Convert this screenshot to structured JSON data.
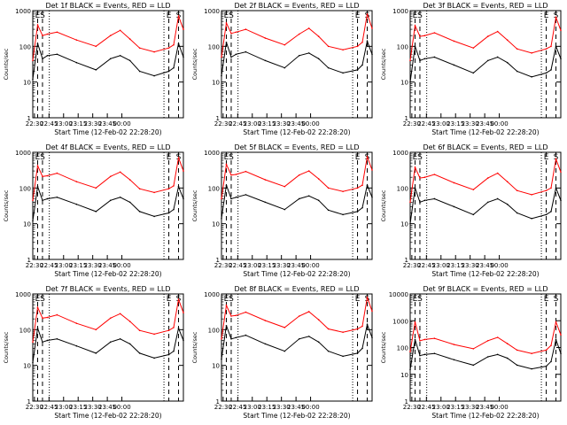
{
  "figure": {
    "xlabel": "Start Time (12-Feb-02 22:28:20)",
    "ylabel": "Counts/sec",
    "x_tick_labels": [
      "22:30",
      "22:45",
      "23:00",
      "23:15",
      "23:30",
      "23:45",
      "00:00"
    ],
    "colors": {
      "events": "#000000",
      "lld": "#ff0000",
      "background": "#ffffff"
    },
    "marker_labels": [
      "E",
      "S"
    ]
  },
  "chart_data": [
    {
      "type": "line",
      "title": "Det 1f BLACK = Events, RED = LLD",
      "ylim": [
        1,
        1000
      ],
      "yscale": "log",
      "y_tick_labels": [
        "1",
        "10",
        "100",
        "1000"
      ],
      "x_minutes": [
        0,
        5,
        10,
        15,
        25,
        45,
        65,
        80,
        90,
        100,
        110,
        125,
        140,
        145,
        150,
        155
      ],
      "series": [
        {
          "name": "BLACK = Events",
          "values": [
            12,
            120,
            45,
            55,
            60,
            35,
            22,
            45,
            55,
            40,
            20,
            15,
            20,
            25,
            120,
            50
          ]
        },
        {
          "name": "RED = LLD",
          "values": [
            40,
            400,
            200,
            220,
            250,
            150,
            100,
            200,
            280,
            160,
            90,
            70,
            90,
            110,
            700,
            300
          ]
        }
      ]
    },
    {
      "type": "line",
      "title": "Det 2f BLACK = Events, RED = LLD",
      "ylim": [
        1,
        1000
      ],
      "yscale": "log",
      "y_tick_labels": [
        "1",
        "10",
        "100",
        "1000"
      ],
      "x_minutes": [
        0,
        5,
        10,
        15,
        25,
        45,
        65,
        80,
        90,
        100,
        110,
        125,
        140,
        145,
        150,
        155
      ],
      "series": [
        {
          "name": "BLACK = Events",
          "values": [
            15,
            130,
            50,
            60,
            70,
            40,
            25,
            55,
            65,
            45,
            25,
            18,
            22,
            30,
            140,
            60
          ]
        },
        {
          "name": "RED = LLD",
          "values": [
            50,
            450,
            230,
            250,
            300,
            170,
            110,
            220,
            320,
            190,
            100,
            80,
            100,
            130,
            800,
            320
          ]
        }
      ]
    },
    {
      "type": "line",
      "title": "Det 3f BLACK = Events, RED = LLD",
      "ylim": [
        1,
        1000
      ],
      "yscale": "log",
      "y_tick_labels": [
        "1",
        "10",
        "100",
        "1000"
      ],
      "x_minutes": [
        0,
        5,
        10,
        15,
        25,
        45,
        65,
        80,
        90,
        100,
        110,
        125,
        140,
        145,
        150,
        155
      ],
      "series": [
        {
          "name": "BLACK = Events",
          "values": [
            10,
            100,
            40,
            45,
            50,
            30,
            18,
            40,
            50,
            35,
            20,
            14,
            18,
            22,
            100,
            45
          ]
        },
        {
          "name": "RED = LLD",
          "values": [
            40,
            380,
            190,
            200,
            240,
            140,
            90,
            190,
            260,
            150,
            85,
            65,
            85,
            100,
            650,
            280
          ]
        }
      ]
    },
    {
      "type": "line",
      "title": "Det 4f BLACK = Events, RED = LLD",
      "ylim": [
        1,
        1000
      ],
      "yscale": "log",
      "y_tick_labels": [
        "1",
        "10",
        "100",
        "1000"
      ],
      "x_minutes": [
        0,
        5,
        10,
        15,
        25,
        45,
        65,
        80,
        90,
        100,
        110,
        125,
        140,
        145,
        150,
        155
      ],
      "series": [
        {
          "name": "BLACK = Events",
          "values": [
            12,
            110,
            45,
            50,
            55,
            35,
            22,
            45,
            55,
            40,
            22,
            16,
            20,
            25,
            110,
            50
          ]
        },
        {
          "name": "RED = LLD",
          "values": [
            45,
            420,
            210,
            220,
            260,
            150,
            100,
            210,
            280,
            170,
            95,
            75,
            95,
            115,
            700,
            300
          ]
        }
      ]
    },
    {
      "type": "line",
      "title": "Det 5f BLACK = Events, RED = LLD",
      "ylim": [
        1,
        1000
      ],
      "yscale": "log",
      "y_tick_labels": [
        "1",
        "10",
        "100",
        "1000"
      ],
      "x_minutes": [
        0,
        5,
        10,
        15,
        25,
        45,
        65,
        80,
        90,
        100,
        110,
        125,
        140,
        145,
        150,
        155
      ],
      "series": [
        {
          "name": "BLACK = Events",
          "values": [
            14,
            120,
            50,
            55,
            65,
            40,
            25,
            50,
            60,
            45,
            24,
            18,
            22,
            28,
            120,
            55
          ]
        },
        {
          "name": "RED = LLD",
          "values": [
            50,
            460,
            230,
            240,
            290,
            170,
            110,
            230,
            300,
            180,
            100,
            80,
            100,
            120,
            750,
            320
          ]
        }
      ]
    },
    {
      "type": "line",
      "title": "Det 6f BLACK = Events, RED = LLD",
      "ylim": [
        1,
        1000
      ],
      "yscale": "log",
      "y_tick_labels": [
        "1",
        "10",
        "100",
        "1000"
      ],
      "x_minutes": [
        0,
        5,
        10,
        15,
        25,
        45,
        65,
        80,
        90,
        100,
        110,
        125,
        140,
        145,
        150,
        155
      ],
      "series": [
        {
          "name": "BLACK = Events",
          "values": [
            10,
            100,
            40,
            45,
            50,
            30,
            18,
            40,
            50,
            35,
            20,
            14,
            18,
            22,
            100,
            45
          ]
        },
        {
          "name": "RED = LLD",
          "values": [
            40,
            380,
            190,
            200,
            240,
            140,
            90,
            190,
            260,
            150,
            85,
            65,
            85,
            100,
            650,
            280
          ]
        }
      ]
    },
    {
      "type": "line",
      "title": "Det 7f BLACK = Events, RED = LLD",
      "ylim": [
        1,
        1000
      ],
      "yscale": "log",
      "y_tick_labels": [
        "1",
        "10",
        "100",
        "1000"
      ],
      "x_minutes": [
        0,
        5,
        10,
        15,
        25,
        45,
        65,
        80,
        90,
        100,
        110,
        125,
        140,
        145,
        150,
        155
      ],
      "series": [
        {
          "name": "BLACK = Events",
          "values": [
            12,
            110,
            45,
            50,
            55,
            35,
            22,
            45,
            55,
            40,
            22,
            16,
            20,
            25,
            110,
            50
          ]
        },
        {
          "name": "RED = LLD",
          "values": [
            45,
            420,
            210,
            220,
            260,
            150,
            100,
            210,
            280,
            170,
            95,
            75,
            95,
            115,
            700,
            300
          ]
        }
      ]
    },
    {
      "type": "line",
      "title": "Det 8f BLACK = Events, RED = LLD",
      "ylim": [
        1,
        1000
      ],
      "yscale": "log",
      "y_tick_labels": [
        "1",
        "10",
        "100",
        "1000"
      ],
      "x_minutes": [
        0,
        5,
        10,
        15,
        25,
        45,
        65,
        80,
        90,
        100,
        110,
        125,
        140,
        145,
        150,
        155
      ],
      "series": [
        {
          "name": "BLACK = Events",
          "values": [
            15,
            130,
            55,
            60,
            70,
            40,
            25,
            55,
            65,
            45,
            25,
            18,
            22,
            30,
            140,
            60
          ]
        },
        {
          "name": "RED = LLD",
          "values": [
            55,
            480,
            240,
            250,
            310,
            180,
            115,
            240,
            320,
            190,
            105,
            85,
            105,
            125,
            800,
            330
          ]
        }
      ]
    },
    {
      "type": "line",
      "title": "Det 9f BLACK = Events, RED = LLD",
      "ylim": [
        1,
        10000
      ],
      "yscale": "log",
      "y_tick_labels": [
        "1",
        "10",
        "100",
        "1000",
        "10000"
      ],
      "x_minutes": [
        0,
        5,
        10,
        15,
        25,
        45,
        65,
        80,
        90,
        100,
        110,
        125,
        140,
        145,
        150,
        155
      ],
      "series": [
        {
          "name": "BLACK = Events",
          "values": [
            15,
            200,
            50,
            55,
            60,
            35,
            22,
            45,
            55,
            40,
            22,
            16,
            20,
            30,
            200,
            60
          ]
        },
        {
          "name": "RED = LLD",
          "values": [
            70,
            900,
            180,
            200,
            220,
            130,
            90,
            180,
            240,
            140,
            80,
            60,
            80,
            120,
            900,
            300
          ]
        }
      ]
    }
  ]
}
